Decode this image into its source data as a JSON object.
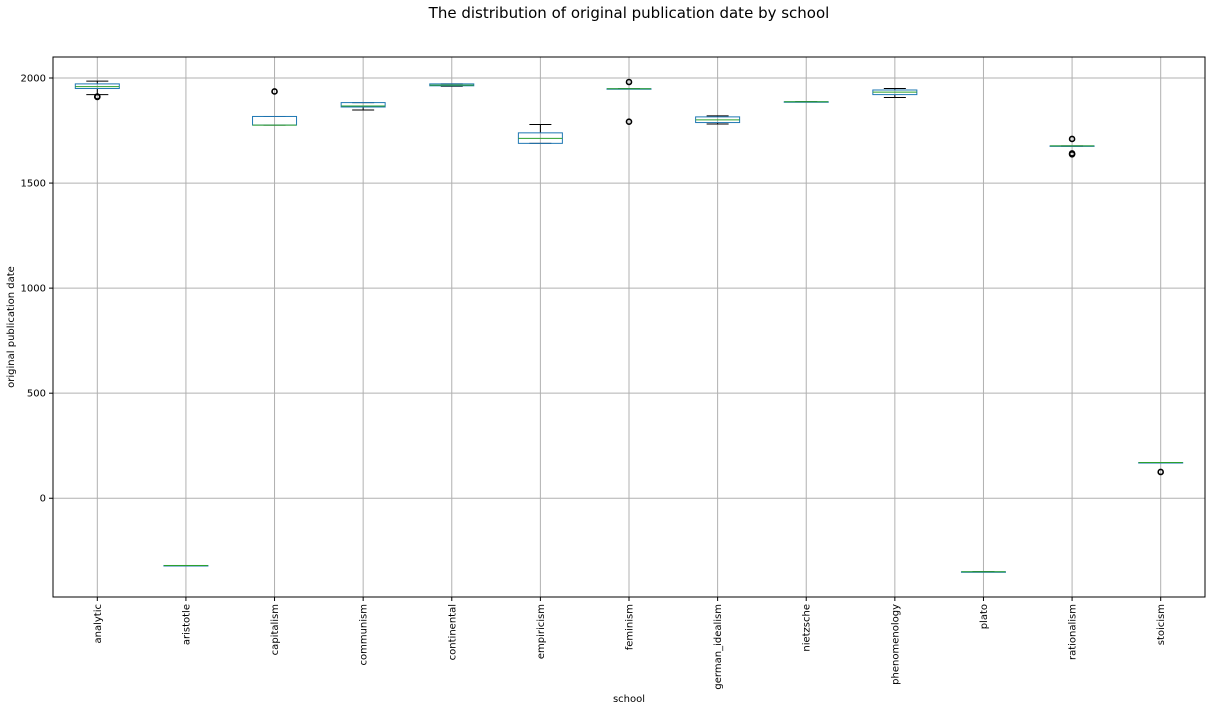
{
  "chart_data": {
    "type": "boxplot",
    "title": "The distribution of original publication date by school",
    "xlabel": "school",
    "ylabel": "original publication date",
    "ylim": [
      -470,
      2100
    ],
    "yticks": [
      0,
      500,
      1000,
      1500,
      2000
    ],
    "grid": true,
    "colors": {
      "box": "#1f77b4",
      "median": "#2ca02c",
      "whisker": "#000000",
      "grid": "#b0b0b0"
    },
    "categories": [
      "analytic",
      "aristotle",
      "capitalism",
      "communism",
      "continental",
      "empiricism",
      "feminism",
      "german_idealism",
      "nietzsche",
      "phenomenology",
      "plato",
      "rationalism",
      "stoicism"
    ],
    "boxes": [
      {
        "school": "analytic",
        "whislo": 1921,
        "q1": 1950,
        "med": 1959,
        "q3": 1972,
        "whishi": 1985,
        "fliers": [
          1910,
          1912
        ]
      },
      {
        "school": "aristotle",
        "whislo": -320,
        "q1": -320,
        "med": -320,
        "q3": -320,
        "whishi": -320,
        "fliers": []
      },
      {
        "school": "capitalism",
        "whislo": 1776,
        "q1": 1776,
        "med": 1776,
        "q3": 1817,
        "whishi": 1817,
        "fliers": [
          1936
        ]
      },
      {
        "school": "communism",
        "whislo": 1848,
        "q1": 1862,
        "med": 1867,
        "q3": 1883,
        "whishi": 1883,
        "fliers": []
      },
      {
        "school": "continental",
        "whislo": 1961,
        "q1": 1963,
        "med": 1966,
        "q3": 1972,
        "whishi": 1972,
        "fliers": []
      },
      {
        "school": "empiricism",
        "whislo": 1689,
        "q1": 1689,
        "med": 1713,
        "q3": 1739,
        "whishi": 1779,
        "fliers": []
      },
      {
        "school": "feminism",
        "whislo": 1949,
        "q1": 1949,
        "med": 1949,
        "q3": 1949,
        "whishi": 1949,
        "fliers": [
          1792,
          1981
        ]
      },
      {
        "school": "german_idealism",
        "whislo": 1781,
        "q1": 1788,
        "med": 1801,
        "q3": 1815,
        "whishi": 1820,
        "fliers": []
      },
      {
        "school": "nietzsche",
        "whislo": 1887,
        "q1": 1887,
        "med": 1887,
        "q3": 1887,
        "whishi": 1887,
        "fliers": []
      },
      {
        "school": "phenomenology",
        "whislo": 1907,
        "q1": 1921,
        "med": 1933,
        "q3": 1943,
        "whishi": 1950,
        "fliers": []
      },
      {
        "school": "plato",
        "whislo": -350,
        "q1": -350,
        "med": -350,
        "q3": -350,
        "whishi": -350,
        "fliers": []
      },
      {
        "school": "rationalism",
        "whislo": 1675,
        "q1": 1675,
        "med": 1677,
        "q3": 1677,
        "whishi": 1677,
        "fliers": [
          1637,
          1641,
          1710
        ]
      },
      {
        "school": "stoicism",
        "whislo": 170,
        "q1": 170,
        "med": 170,
        "q3": 170,
        "whishi": 170,
        "fliers": [
          125
        ]
      }
    ]
  }
}
